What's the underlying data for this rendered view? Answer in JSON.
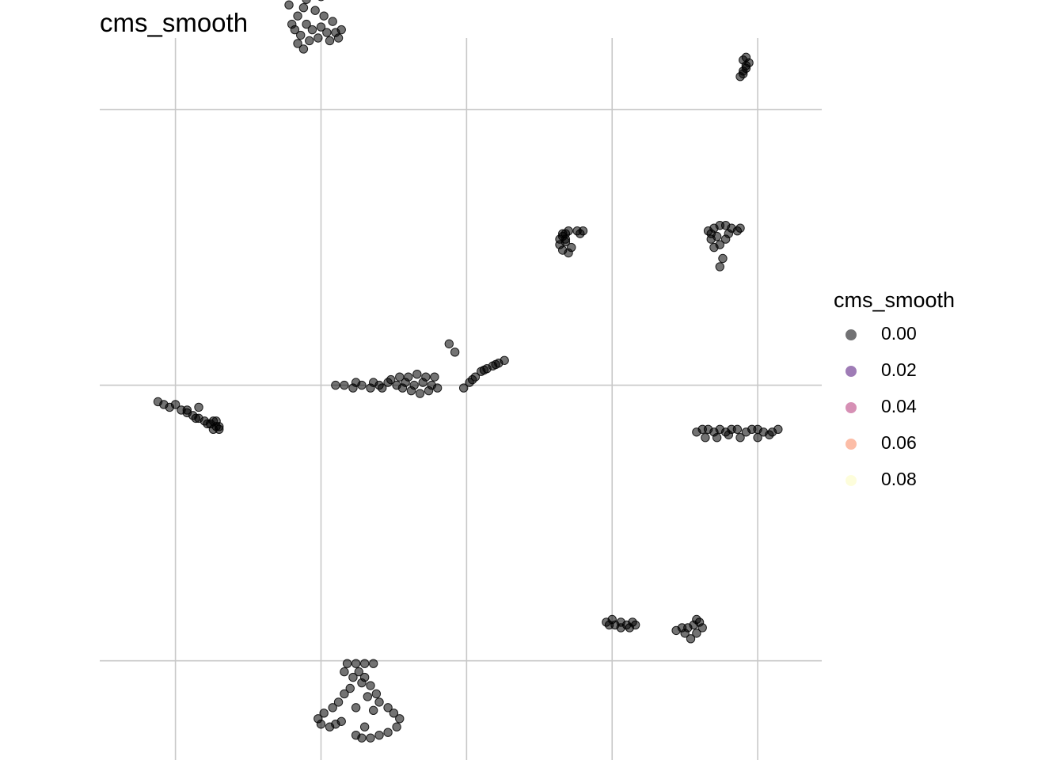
{
  "chart_data": {
    "type": "scatter",
    "title": "cms_smooth",
    "xlabel": "",
    "ylabel": "",
    "grid": true,
    "axis_ticks_shown": false,
    "legend": {
      "title": "cms_smooth",
      "placement": "right",
      "entries": [
        {
          "label": "0.00",
          "color": "#000004"
        },
        {
          "label": "0.02",
          "color": "#51127C"
        },
        {
          "label": "0.04",
          "color": "#B63679"
        },
        {
          "label": "0.06",
          "color": "#FB8861"
        },
        {
          "label": "0.08",
          "color": "#FCFDBF"
        }
      ]
    },
    "xlim": [
      -8.6,
      16.2
    ],
    "ylim": [
      -13.6,
      12.6
    ],
    "x_gridlines": [
      -6,
      -1,
      4,
      9,
      14
    ],
    "y_gridlines": [
      -10,
      0,
      10
    ],
    "point_color": "#000000",
    "point_alpha": 0.55,
    "clusters": [
      {
        "id": "A",
        "points": [
          [
            -1.9,
            14.2
          ],
          [
            -1.8,
            14.8
          ],
          [
            -1.6,
            15.1
          ],
          [
            -1.4,
            15.3
          ],
          [
            -1.2,
            15.2
          ],
          [
            -0.9,
            15.0
          ],
          [
            -0.6,
            14.9
          ],
          [
            -0.4,
            15.0
          ],
          [
            -0.3,
            14.7
          ],
          [
            -1.7,
            14.5
          ],
          [
            -1.3,
            14.8
          ],
          [
            -0.7,
            14.6
          ],
          [
            -1.5,
            14.0
          ],
          [
            -1.6,
            13.7
          ],
          [
            -1.8,
            13.4
          ],
          [
            -2.0,
            13.1
          ],
          [
            -2.1,
            13.8
          ],
          [
            -1.9,
            12.9
          ],
          [
            -1.7,
            12.7
          ],
          [
            -1.5,
            13.1
          ],
          [
            -1.3,
            12.9
          ],
          [
            -1.0,
            13.0
          ],
          [
            -0.8,
            12.8
          ],
          [
            -0.5,
            12.8
          ],
          [
            -0.3,
            12.9
          ],
          [
            -0.6,
            13.2
          ],
          [
            -0.9,
            13.4
          ],
          [
            -1.2,
            13.6
          ],
          [
            -1.4,
            12.5
          ],
          [
            -1.8,
            12.4
          ],
          [
            -1.1,
            12.6
          ],
          [
            -0.7,
            12.5
          ],
          [
            -0.4,
            12.6
          ],
          [
            -1.3,
            14.3
          ],
          [
            -1.0,
            14.1
          ],
          [
            -1.6,
            12.2
          ]
        ]
      },
      {
        "id": "B",
        "points": [
          [
            13.4,
            11.2
          ],
          [
            13.5,
            11.4
          ],
          [
            13.6,
            11.6
          ],
          [
            13.5,
            11.8
          ],
          [
            13.6,
            11.9
          ],
          [
            13.7,
            11.7
          ],
          [
            13.6,
            11.5
          ],
          [
            13.5,
            11.3
          ]
        ]
      },
      {
        "id": "C",
        "points": [
          [
            7.2,
            5.3
          ],
          [
            7.3,
            5.4
          ],
          [
            7.4,
            5.5
          ],
          [
            7.5,
            5.6
          ],
          [
            7.3,
            5.5
          ],
          [
            7.4,
            5.3
          ],
          [
            7.2,
            5.1
          ],
          [
            7.4,
            5.2
          ],
          [
            7.8,
            5.6
          ],
          [
            7.9,
            5.5
          ],
          [
            8.0,
            5.6
          ],
          [
            7.3,
            4.9
          ],
          [
            7.5,
            4.8
          ],
          [
            7.6,
            5.0
          ]
        ]
      },
      {
        "id": "D",
        "points": [
          [
            -6.6,
            -0.6
          ],
          [
            -6.4,
            -0.7
          ],
          [
            -6.2,
            -0.8
          ],
          [
            -6.0,
            -0.7
          ],
          [
            -5.8,
            -0.9
          ],
          [
            -5.6,
            -1.0
          ],
          [
            -5.4,
            -1.1
          ],
          [
            -5.2,
            -1.2
          ],
          [
            -5.0,
            -1.3
          ],
          [
            -4.8,
            -1.4
          ],
          [
            -4.6,
            -1.5
          ],
          [
            -4.5,
            -1.6
          ],
          [
            -5.6,
            -0.9
          ],
          [
            -5.3,
            -1.2
          ],
          [
            -4.9,
            -1.4
          ],
          [
            -4.7,
            -1.3
          ],
          [
            -4.7,
            -1.6
          ],
          [
            -5.2,
            -0.8
          ],
          [
            -4.6,
            -1.3
          ],
          [
            -4.5,
            -1.5
          ]
        ]
      },
      {
        "id": "E",
        "points": [
          [
            -0.5,
            0.0
          ],
          [
            -0.2,
            0.0
          ],
          [
            0.1,
            -0.1
          ],
          [
            0.4,
            0.0
          ],
          [
            0.7,
            -0.1
          ],
          [
            1.0,
            0.0
          ],
          [
            1.3,
            0.1
          ],
          [
            1.6,
            0.0
          ],
          [
            1.9,
            0.1
          ],
          [
            2.2,
            0.0
          ],
          [
            2.5,
            0.1
          ],
          [
            2.8,
            0.0
          ],
          [
            3.0,
            -0.1
          ],
          [
            2.6,
            0.3
          ],
          [
            2.3,
            0.4
          ],
          [
            2.0,
            0.3
          ],
          [
            1.7,
            0.3
          ],
          [
            2.9,
            0.3
          ],
          [
            1.4,
            0.2
          ],
          [
            1.1,
            -0.1
          ],
          [
            2.4,
            -0.3
          ],
          [
            2.7,
            -0.2
          ],
          [
            2.1,
            -0.2
          ],
          [
            1.8,
            -0.1
          ],
          [
            0.2,
            0.1
          ],
          [
            0.8,
            0.1
          ]
        ]
      },
      {
        "id": "F",
        "points": [
          [
            3.9,
            -0.1
          ],
          [
            4.1,
            0.1
          ],
          [
            4.3,
            0.3
          ],
          [
            4.5,
            0.5
          ],
          [
            4.7,
            0.6
          ],
          [
            4.9,
            0.7
          ],
          [
            5.1,
            0.8
          ],
          [
            5.3,
            0.9
          ],
          [
            4.2,
            0.2
          ],
          [
            4.6,
            0.55
          ],
          [
            5.0,
            0.75
          ],
          [
            3.4,
            1.5
          ],
          [
            3.6,
            1.2
          ]
        ]
      },
      {
        "id": "G",
        "points": [
          [
            11.9,
            -1.7
          ],
          [
            12.1,
            -1.6
          ],
          [
            12.3,
            -1.6
          ],
          [
            12.5,
            -1.7
          ],
          [
            12.7,
            -1.6
          ],
          [
            12.9,
            -1.7
          ],
          [
            13.1,
            -1.6
          ],
          [
            13.3,
            -1.6
          ],
          [
            13.6,
            -1.7
          ],
          [
            13.8,
            -1.6
          ],
          [
            14.0,
            -1.6
          ],
          [
            14.2,
            -1.7
          ],
          [
            14.5,
            -1.7
          ],
          [
            14.7,
            -1.6
          ],
          [
            12.2,
            -1.9
          ],
          [
            12.6,
            -1.9
          ],
          [
            13.0,
            -1.8
          ],
          [
            13.4,
            -1.9
          ],
          [
            14.0,
            -1.9
          ],
          [
            14.4,
            -1.8
          ]
        ]
      },
      {
        "id": "H",
        "points": [
          [
            12.3,
            5.6
          ],
          [
            12.5,
            5.7
          ],
          [
            12.7,
            5.8
          ],
          [
            12.9,
            5.8
          ],
          [
            13.1,
            5.7
          ],
          [
            13.3,
            5.6
          ],
          [
            13.4,
            5.7
          ],
          [
            12.6,
            5.4
          ],
          [
            12.4,
            5.3
          ],
          [
            12.7,
            5.1
          ],
          [
            12.5,
            5.0
          ],
          [
            13.0,
            5.5
          ],
          [
            12.9,
            5.3
          ],
          [
            12.4,
            5.5
          ],
          [
            12.8,
            4.6
          ],
          [
            12.7,
            4.3
          ]
        ]
      },
      {
        "id": "I",
        "points": [
          [
            8.8,
            -8.6
          ],
          [
            8.9,
            -8.7
          ],
          [
            9.1,
            -8.7
          ],
          [
            9.3,
            -8.6
          ],
          [
            9.5,
            -8.7
          ],
          [
            9.7,
            -8.6
          ],
          [
            9.3,
            -8.8
          ],
          [
            9.0,
            -8.5
          ],
          [
            9.6,
            -8.8
          ],
          [
            9.8,
            -8.7
          ]
        ]
      },
      {
        "id": "J",
        "points": [
          [
            11.2,
            -8.9
          ],
          [
            11.4,
            -8.8
          ],
          [
            11.6,
            -8.8
          ],
          [
            11.8,
            -8.7
          ],
          [
            12.0,
            -8.6
          ],
          [
            12.1,
            -8.8
          ],
          [
            11.9,
            -9.0
          ],
          [
            11.7,
            -9.2
          ],
          [
            11.9,
            -8.5
          ],
          [
            11.5,
            -9.0
          ]
        ]
      },
      {
        "id": "K",
        "points": [
          [
            -0.1,
            -10.1
          ],
          [
            0.2,
            -10.1
          ],
          [
            0.5,
            -10.1
          ],
          [
            0.8,
            -10.1
          ],
          [
            0.3,
            -10.4
          ],
          [
            0.1,
            -10.6
          ],
          [
            0.4,
            -10.8
          ],
          [
            0.0,
            -11.0
          ],
          [
            -0.2,
            -11.2
          ],
          [
            -0.4,
            -11.5
          ],
          [
            -0.6,
            -11.7
          ],
          [
            -0.9,
            -11.9
          ],
          [
            -1.1,
            -12.1
          ],
          [
            -1.0,
            -12.3
          ],
          [
            -0.7,
            -12.4
          ],
          [
            -0.5,
            -12.3
          ],
          [
            -0.3,
            -12.2
          ],
          [
            0.5,
            -10.6
          ],
          [
            0.7,
            -10.9
          ],
          [
            0.9,
            -11.2
          ],
          [
            1.0,
            -11.5
          ],
          [
            1.3,
            -11.7
          ],
          [
            1.5,
            -11.9
          ],
          [
            1.7,
            -12.1
          ],
          [
            1.6,
            -12.4
          ],
          [
            1.3,
            -12.6
          ],
          [
            1.0,
            -12.7
          ],
          [
            0.7,
            -12.8
          ],
          [
            0.4,
            -12.8
          ],
          [
            0.2,
            -12.7
          ],
          [
            0.5,
            -12.4
          ],
          [
            0.8,
            -11.8
          ],
          [
            0.6,
            -11.3
          ],
          [
            0.2,
            -11.7
          ],
          [
            -0.2,
            -10.4
          ]
        ]
      }
    ]
  }
}
